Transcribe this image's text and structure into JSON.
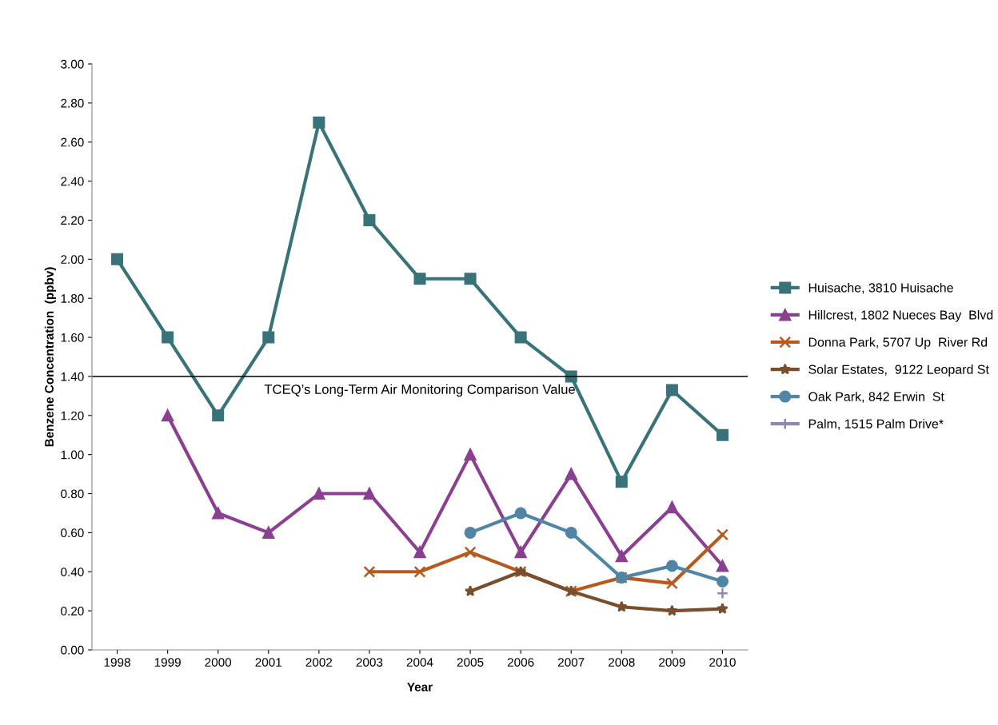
{
  "chart_data": {
    "type": "line",
    "xlabel": "Year",
    "ylabel": "Benzene Concentration  (ppbv)",
    "categories": [
      "1998",
      "1999",
      "2000",
      "2001",
      "2002",
      "2003",
      "2004",
      "2005",
      "2006",
      "2007",
      "2008",
      "2009",
      "2010"
    ],
    "ylim": [
      0,
      3
    ],
    "yticks": [
      {
        "value": 0,
        "label": "0.00"
      },
      {
        "value": 0.2,
        "label": "0.20"
      },
      {
        "value": 0.4,
        "label": "0.40"
      },
      {
        "value": 0.6,
        "label": "0.60"
      },
      {
        "value": 0.8,
        "label": "0.80"
      },
      {
        "value": 1.0,
        "label": "1.00"
      },
      {
        "value": 1.2,
        "label": "1.20"
      },
      {
        "value": 1.4,
        "label": "1.40"
      },
      {
        "value": 1.6,
        "label": "1.60"
      },
      {
        "value": 1.8,
        "label": "1.80"
      },
      {
        "value": 2.0,
        "label": "2.00"
      },
      {
        "value": 2.2,
        "label": "2.20"
      },
      {
        "value": 2.4,
        "label": "2.40"
      },
      {
        "value": 2.6,
        "label": "2.60"
      },
      {
        "value": 2.8,
        "label": "2.80"
      },
      {
        "value": 3.0,
        "label": "3.00"
      }
    ],
    "grid": false,
    "legend": "right",
    "series": [
      {
        "name": "Huisache, 3810 Huisache",
        "color": "#38737a",
        "marker": "square",
        "values": [
          2.0,
          1.6,
          1.2,
          1.6,
          2.7,
          2.2,
          1.9,
          1.9,
          1.6,
          1.4,
          0.86,
          1.33,
          1.1
        ]
      },
      {
        "name": "Hillcrest, 1802 Nueces Bay  Blvd",
        "color": "#8b3f91",
        "marker": "triangle",
        "values": [
          null,
          1.2,
          0.7,
          0.6,
          0.8,
          0.8,
          0.5,
          1.0,
          0.5,
          0.9,
          0.48,
          0.73,
          0.43
        ]
      },
      {
        "name": "Donna Park, 5707 Up  River Rd",
        "color": "#b85a1e",
        "marker": "cross",
        "values": [
          null,
          null,
          null,
          null,
          null,
          0.4,
          0.4,
          0.5,
          0.4,
          0.3,
          0.37,
          0.34,
          0.59
        ]
      },
      {
        "name": "Solar Estates,  9122 Leopard St",
        "color": "#7a4e2d",
        "marker": "star",
        "values": [
          null,
          null,
          null,
          null,
          null,
          null,
          null,
          0.3,
          0.4,
          0.3,
          0.22,
          0.2,
          0.21
        ]
      },
      {
        "name": "Oak Park, 842 Erwin  St",
        "color": "#4f86a6",
        "marker": "circle",
        "values": [
          null,
          null,
          null,
          null,
          null,
          null,
          null,
          0.6,
          0.7,
          0.6,
          0.37,
          0.43,
          0.35
        ]
      },
      {
        "name": "Palm, 1515 Palm Drive*",
        "color": "#8f89b0",
        "marker": "plus",
        "values": [
          null,
          null,
          null,
          null,
          null,
          null,
          null,
          null,
          null,
          null,
          null,
          null,
          0.29
        ]
      }
    ],
    "ref_lines": [
      {
        "axis": "y",
        "value": 1.4,
        "label": "TCEQ’s Long-Term Air Monitoring Comparison Value",
        "color": "#000000",
        "line_style": "solid"
      }
    ]
  }
}
